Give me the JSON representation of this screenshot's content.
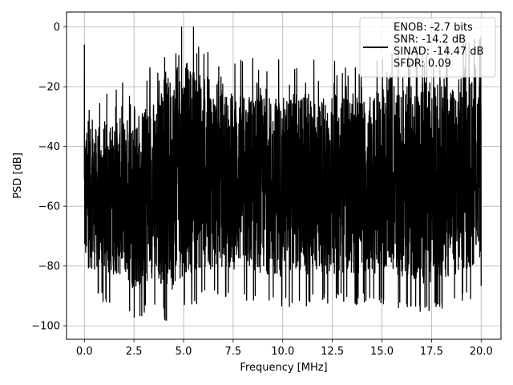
{
  "chart_data": {
    "type": "line",
    "title": "",
    "xlabel": "Frequency [MHz]",
    "ylabel": "PSD [dB]",
    "xlim": [
      -0.9,
      21.0
    ],
    "ylim": [
      -104.5,
      5.0
    ],
    "x_ticks": [
      0,
      2.5,
      5,
      7.5,
      10,
      12.5,
      15,
      17.5,
      20
    ],
    "x_tick_labels": [
      "0.0",
      "2.5",
      "5.0",
      "7.5",
      "10.0",
      "12.5",
      "15.0",
      "17.5",
      "20.0"
    ],
    "y_ticks": [
      0,
      -20,
      -40,
      -60,
      -80,
      -100
    ],
    "y_tick_labels": [
      "0",
      "−20",
      "−40",
      "−60",
      "−80",
      "−100"
    ],
    "grid": true,
    "legend_position": "top-right",
    "legend": [
      "ENOB: -2.7 bits",
      "SNR: -14.2 dB",
      "SINAD: -14.47 dB",
      "SFDR: 0.09"
    ],
    "series": [
      {
        "color": "#000000",
        "description": "dense noisy power spectral density trace spanning 0 to 20 MHz",
        "x_range": [
          0,
          20
        ],
        "peaks": [
          {
            "x": 0.0,
            "y": -6
          },
          {
            "x": 4.9,
            "y": 0
          },
          {
            "x": 5.5,
            "y": 0
          }
        ],
        "envelope": [
          {
            "x": 0.0,
            "upper": -35,
            "lower": -86
          },
          {
            "x": 1.0,
            "upper": -33,
            "lower": -88
          },
          {
            "x": 2.0,
            "upper": -30,
            "lower": -90
          },
          {
            "x": 2.5,
            "upper": -28,
            "lower": -95
          },
          {
            "x": 3.5,
            "upper": -24,
            "lower": -90
          },
          {
            "x": 4.3,
            "upper": -15,
            "lower": -96
          },
          {
            "x": 5.0,
            "upper": -10,
            "lower": -90
          },
          {
            "x": 6.0,
            "upper": -15,
            "lower": -88
          },
          {
            "x": 7.0,
            "upper": -20,
            "lower": -87
          },
          {
            "x": 8.0,
            "upper": -22,
            "lower": -88
          },
          {
            "x": 10.0,
            "upper": -22,
            "lower": -90
          },
          {
            "x": 12.0,
            "upper": -22,
            "lower": -89
          },
          {
            "x": 14.0,
            "upper": -22,
            "lower": -89
          },
          {
            "x": 16.0,
            "upper": -20,
            "lower": -90
          },
          {
            "x": 17.0,
            "upper": -17,
            "lower": -93
          },
          {
            "x": 18.0,
            "upper": -16,
            "lower": -91
          },
          {
            "x": 19.0,
            "upper": -16,
            "lower": -89
          },
          {
            "x": 20.0,
            "upper": -15,
            "lower": -85
          }
        ]
      }
    ]
  }
}
